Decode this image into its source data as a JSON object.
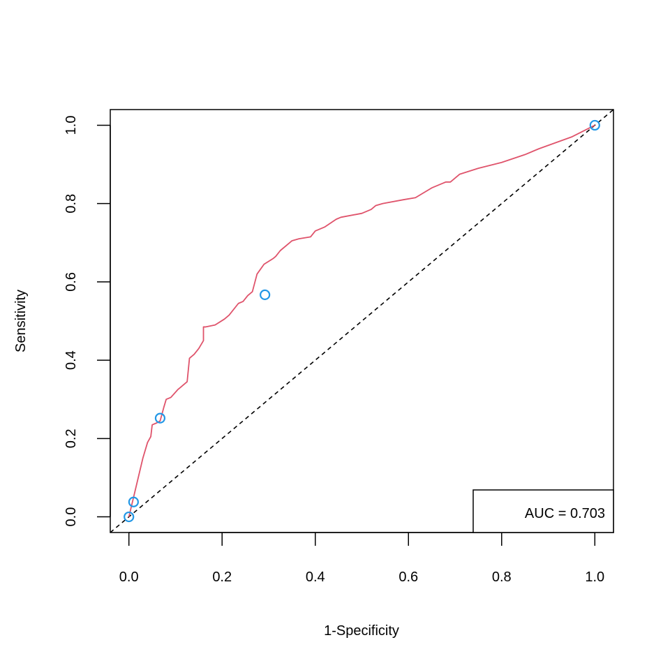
{
  "chart_data": {
    "type": "line",
    "title": "",
    "xlabel": "1-Specificity",
    "ylabel": "Sensitivity",
    "xlim": [
      -0.04,
      1.04
    ],
    "ylim": [
      -0.04,
      1.04
    ],
    "xticks": [
      0.0,
      0.2,
      0.4,
      0.6,
      0.8,
      1.0
    ],
    "xtick_labels": [
      "0.0",
      "0.2",
      "0.4",
      "0.6",
      "0.8",
      "1.0"
    ],
    "yticks": [
      0.0,
      0.2,
      0.4,
      0.6,
      0.8,
      1.0
    ],
    "ytick_labels": [
      "0.0",
      "0.2",
      "0.4",
      "0.6",
      "0.8",
      "1.0"
    ],
    "grid": false,
    "legend": {
      "placement": "bottom-right",
      "text": "AUC = 0.703"
    },
    "colors": {
      "roc": "#DF536B",
      "points": "#2297E6",
      "reference": "#000000"
    },
    "reference_line": {
      "style": "dashed",
      "from": [
        0,
        0
      ],
      "to": [
        1,
        1
      ]
    },
    "series": [
      {
        "name": "",
        "style": "line",
        "x": [
          0.0,
          0.004,
          0.01,
          0.02,
          0.03,
          0.04,
          0.047,
          0.05,
          0.06,
          0.067,
          0.075,
          0.08,
          0.09,
          0.105,
          0.11,
          0.125,
          0.13,
          0.14,
          0.15,
          0.16,
          0.16,
          0.165,
          0.185,
          0.205,
          0.215,
          0.235,
          0.245,
          0.255,
          0.265,
          0.275,
          0.29,
          0.31,
          0.315,
          0.325,
          0.345,
          0.35,
          0.365,
          0.39,
          0.4,
          0.42,
          0.445,
          0.455,
          0.5,
          0.52,
          0.53,
          0.545,
          0.59,
          0.615,
          0.65,
          0.68,
          0.69,
          0.71,
          0.75,
          0.8,
          0.85,
          0.88,
          0.95,
          1.0
        ],
        "y": [
          0.0,
          0.02,
          0.05,
          0.1,
          0.15,
          0.19,
          0.205,
          0.235,
          0.24,
          0.245,
          0.28,
          0.3,
          0.305,
          0.325,
          0.33,
          0.345,
          0.405,
          0.415,
          0.43,
          0.45,
          0.485,
          0.485,
          0.49,
          0.505,
          0.515,
          0.545,
          0.55,
          0.565,
          0.575,
          0.62,
          0.645,
          0.66,
          0.665,
          0.68,
          0.7,
          0.705,
          0.71,
          0.715,
          0.73,
          0.74,
          0.76,
          0.765,
          0.775,
          0.785,
          0.795,
          0.8,
          0.81,
          0.815,
          0.84,
          0.855,
          0.855,
          0.875,
          0.89,
          0.905,
          0.925,
          0.94,
          0.97,
          1.0
        ]
      },
      {
        "name": "",
        "style": "points",
        "x": [
          0.0,
          0.01,
          0.067,
          0.292,
          1.0
        ],
        "y": [
          0.0,
          0.038,
          0.252,
          0.567,
          1.0
        ]
      }
    ]
  }
}
